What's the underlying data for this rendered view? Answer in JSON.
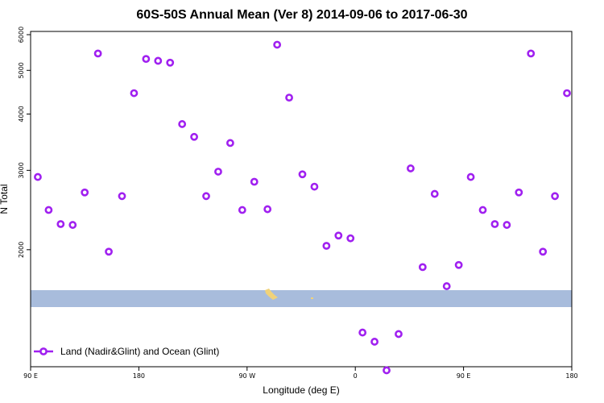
{
  "chart_data": {
    "type": "scatter",
    "title": "60S-50S Annual Mean (Ver 8)   2014-09-06 to 2017-06-30",
    "xlabel": "Longitude (deg E)",
    "ylabel": "N Total",
    "y_scale": "log",
    "xlim": [
      90,
      540
    ],
    "ylim": [
      1100,
      6100
    ],
    "x_ticks": [
      {
        "value": 90,
        "label": "90 E"
      },
      {
        "value": 180,
        "label": "180"
      },
      {
        "value": 270,
        "label": "90 W"
      },
      {
        "value": 360,
        "label": "0"
      },
      {
        "value": 450,
        "label": "90 E"
      },
      {
        "value": 540,
        "label": "180"
      }
    ],
    "y_ticks": [
      {
        "value": 2000,
        "label": "2000"
      },
      {
        "value": 3000,
        "label": "3000"
      },
      {
        "value": 4000,
        "label": "4000"
      },
      {
        "value": 5000,
        "label": "5000"
      },
      {
        "value": 6000,
        "label": "6000"
      }
    ],
    "grid": false,
    "legend": {
      "position": "bottom-left",
      "entries": [
        "Land (Nadir&Glint) and Ocean (Glint)"
      ]
    },
    "series": [
      {
        "name": "Land (Nadir&Glint) and Ocean (Glint)",
        "color": "#a020f0",
        "marker": "open-circle",
        "points": [
          [
            96,
            2900
          ],
          [
            105,
            2450
          ],
          [
            115,
            2280
          ],
          [
            125,
            2270
          ],
          [
            135,
            2680
          ],
          [
            146,
            5450
          ],
          [
            155,
            1980
          ],
          [
            166,
            2630
          ],
          [
            176,
            4450
          ],
          [
            186,
            5300
          ],
          [
            196,
            5250
          ],
          [
            206,
            5200
          ],
          [
            216,
            3800
          ],
          [
            226,
            3560
          ],
          [
            236,
            2630
          ],
          [
            246,
            2980
          ],
          [
            256,
            3450
          ],
          [
            266,
            2450
          ],
          [
            276,
            2830
          ],
          [
            287,
            2460
          ],
          [
            295,
            5700
          ],
          [
            305,
            4350
          ],
          [
            316,
            2940
          ],
          [
            326,
            2760
          ],
          [
            336,
            2040
          ],
          [
            346,
            2150
          ],
          [
            356,
            2120
          ],
          [
            366,
            1310
          ],
          [
            376,
            1250
          ],
          [
            386,
            1080
          ],
          [
            396,
            1300
          ],
          [
            406,
            3030
          ],
          [
            416,
            1830
          ],
          [
            426,
            2660
          ],
          [
            436,
            1660
          ],
          [
            446,
            1850
          ],
          [
            456,
            2900
          ],
          [
            466,
            2450
          ],
          [
            476,
            2280
          ],
          [
            486,
            2270
          ],
          [
            496,
            2680
          ],
          [
            506,
            5450
          ],
          [
            516,
            1980
          ],
          [
            526,
            2630
          ],
          [
            536,
            4450
          ]
        ]
      }
    ]
  }
}
